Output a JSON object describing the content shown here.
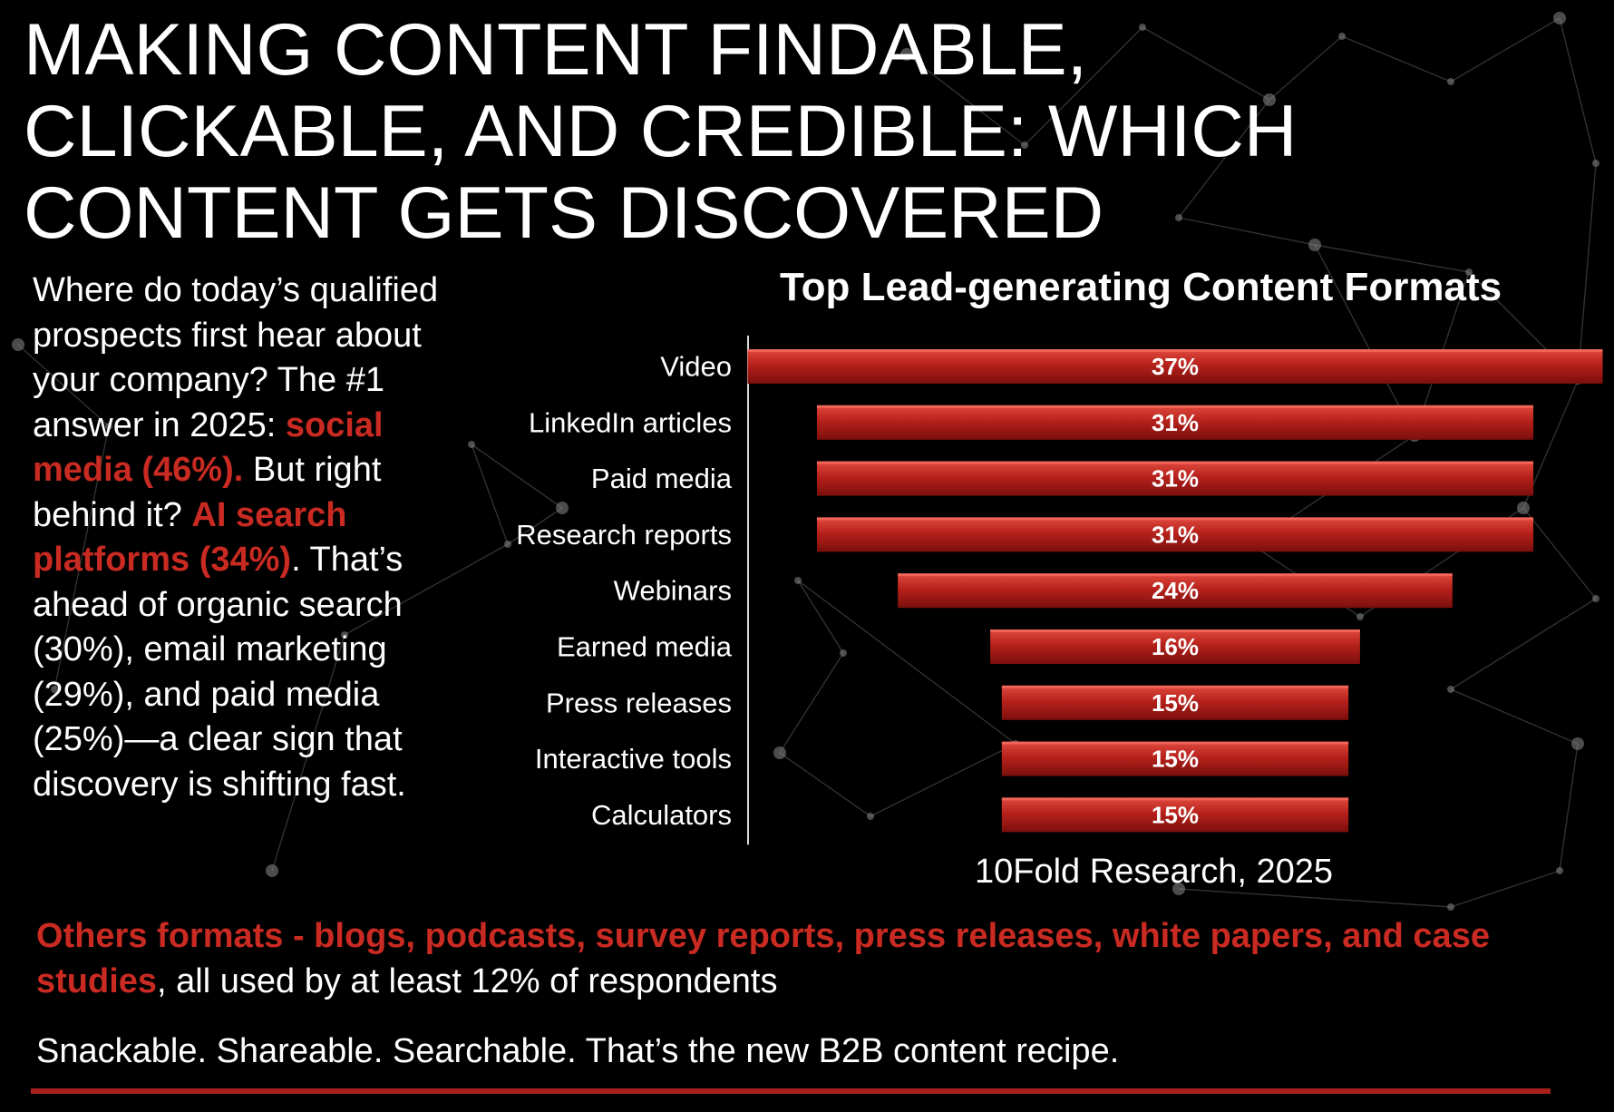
{
  "title_lines": [
    "MAKING CONTENT FINDABLE,",
    "CLICKABLE, AND CREDIBLE: WHICH",
    "CONTENT GETS DISCOVERED"
  ],
  "intro": {
    "p1": "Where do today’s qualified prospects first hear about your company? The #1 answer in 2025: ",
    "hl1": "social media (46%).",
    "p2": " But right behind it? ",
    "hl2": "AI search platforms (34%)",
    "p3": ". That’s ahead of organic search (30%), email marketing (29%), and paid media (25%)—a clear sign that discovery is shifting fast."
  },
  "chart_data": {
    "type": "bar",
    "orientation": "horizontal",
    "title": "Top Lead-generating Content Formats",
    "categories": [
      "Video",
      "LinkedIn articles",
      "Paid media",
      "Research reports",
      "Webinars",
      "Earned media",
      "Press releases",
      "Interactive tools",
      "Calculators"
    ],
    "values": [
      37,
      31,
      31,
      31,
      24,
      16,
      15,
      15,
      15
    ],
    "value_labels": [
      "37%",
      "31%",
      "31%",
      "31%",
      "24%",
      "16%",
      "15%",
      "15%",
      "15%"
    ],
    "bar_alignment": "centered",
    "grid": false,
    "legend": "none",
    "colors": {
      "bar_top": "#e04a3e",
      "bar_mid": "#b7211b",
      "bar_bottom": "#7a0f0c"
    }
  },
  "source": "10Fold Research, 2025",
  "others": {
    "hl": "Others formats - blogs, podcasts, survey reports, press releases, white papers, and case studies",
    "rest": ", all used by at least 12% of respondents"
  },
  "tagline": "Snackable. Shareable. Searchable. That’s the new B2B content recipe.",
  "colors": {
    "background": "#000000",
    "accent_red": "#c92a22",
    "rule": "#a8201b",
    "text": "#ffffff"
  }
}
